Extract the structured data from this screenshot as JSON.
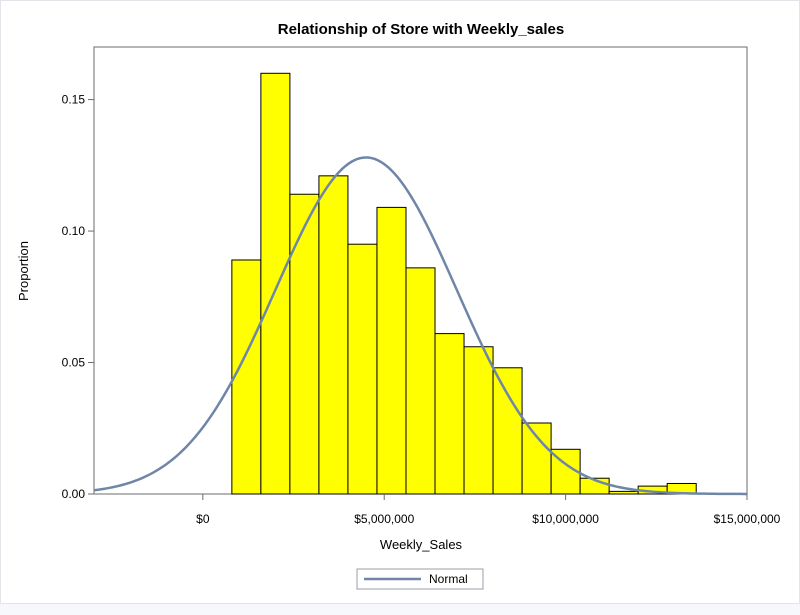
{
  "chart_data": {
    "type": "bar",
    "title": "Relationship of Store with Weekly_sales",
    "xlabel": "Weekly_Sales",
    "ylabel": "Proportion",
    "xlim": [
      -3000000,
      15000000
    ],
    "ylim": [
      0,
      0.17
    ],
    "x_ticks": [
      0,
      5000000,
      10000000,
      15000000
    ],
    "x_tick_labels": [
      "$0",
      "$5,000,000",
      "$10,000,000",
      "$15,000,000"
    ],
    "y_ticks": [
      0,
      0.05,
      0.1,
      0.15
    ],
    "y_tick_labels": [
      "0.00",
      "0.05",
      "0.10",
      "0.15"
    ],
    "bins": [
      {
        "x0": 800000,
        "x1": 1600000,
        "value": 0.089
      },
      {
        "x0": 1600000,
        "x1": 2400000,
        "value": 0.16
      },
      {
        "x0": 2400000,
        "x1": 3200000,
        "value": 0.114
      },
      {
        "x0": 3200000,
        "x1": 4000000,
        "value": 0.121
      },
      {
        "x0": 4000000,
        "x1": 4800000,
        "value": 0.095
      },
      {
        "x0": 4800000,
        "x1": 5600000,
        "value": 0.109
      },
      {
        "x0": 5600000,
        "x1": 6400000,
        "value": 0.086
      },
      {
        "x0": 6400000,
        "x1": 7200000,
        "value": 0.061
      },
      {
        "x0": 7200000,
        "x1": 8000000,
        "value": 0.056
      },
      {
        "x0": 8000000,
        "x1": 8800000,
        "value": 0.048
      },
      {
        "x0": 8800000,
        "x1": 9600000,
        "value": 0.027
      },
      {
        "x0": 9600000,
        "x1": 10400000,
        "value": 0.017
      },
      {
        "x0": 10400000,
        "x1": 11200000,
        "value": 0.006
      },
      {
        "x0": 11200000,
        "x1": 12000000,
        "value": 0.001
      },
      {
        "x0": 12000000,
        "x1": 12800000,
        "value": 0.003
      },
      {
        "x0": 12800000,
        "x1": 13600000,
        "value": 0.004
      }
    ],
    "normal_curve": {
      "name": "Normal",
      "mean": 4500000,
      "peak": 0.128,
      "sd": 2500000
    },
    "legend": {
      "position": "bottom-center",
      "entries": [
        "Normal"
      ]
    },
    "grid": false,
    "colors": {
      "bar_fill": "#ffff00",
      "bar_stroke": "#000000",
      "curve": "#6f86a8",
      "axis": "#6b6b6b"
    }
  }
}
